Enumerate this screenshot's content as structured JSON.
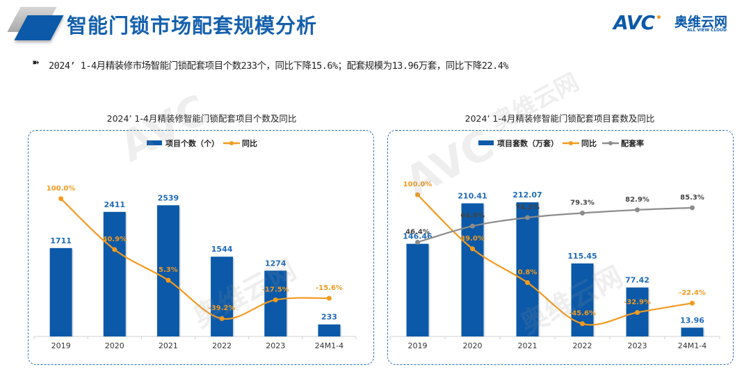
{
  "header": {
    "title": "智能门锁市场配套规模分析",
    "logo_text": "AVC",
    "logo_cn": "奥维云网",
    "logo_en": "ALL VIEW CLOUD"
  },
  "summary": {
    "bullet_icon": "arrow-bullet-icon",
    "text": "2024’ 1-4月精装修市场智能门锁配套项目个数233个，同比下降15.6%；配套规模为13.96万套，同比下降22.4%"
  },
  "colors": {
    "bar": "#0b59a8",
    "yoy": "#f29a1f",
    "rate": "#8c8c8c",
    "bar_label": "#1f6bb8",
    "title": "#1560ad"
  },
  "chart_data": [
    {
      "type": "bar",
      "title": "2024’ 1-4月精装修智能门锁配套项目个数及同比",
      "categories": [
        "2019",
        "2020",
        "2021",
        "2022",
        "2023",
        "24M1-4"
      ],
      "bar_series": {
        "name": "项目个数（个）",
        "values": [
          1711,
          2411,
          2539,
          1544,
          1274,
          233
        ],
        "labels": [
          "1711",
          "2411",
          "2539",
          "1544",
          "1274",
          "233"
        ]
      },
      "line_series": [
        {
          "name": "同比",
          "values": [
            100.0,
            40.9,
            5.3,
            -39.2,
            -17.5,
            -15.6
          ],
          "labels": [
            "100.0%",
            "40.9%",
            "5.3%",
            "-39.2%",
            "-17.5%",
            "-15.6%"
          ],
          "color_key": "yoy"
        }
      ],
      "ylim": [
        0,
        3000
      ],
      "y2lim": [
        -60,
        120
      ],
      "legend": "top-center",
      "grid": false
    },
    {
      "type": "bar",
      "title": "2024’ 1-4月精装修智能门锁配套项目套数及同比",
      "categories": [
        "2019",
        "2020",
        "2021",
        "2022",
        "2023",
        "24M1-4"
      ],
      "bar_series": {
        "name": "项目套数（万套）",
        "values": [
          146.46,
          210.41,
          212.07,
          115.45,
          77.42,
          13.96
        ],
        "labels": [
          "146.46",
          "210.41",
          "212.07",
          "115.45",
          "77.42",
          "13.96"
        ]
      },
      "line_series": [
        {
          "name": "同比",
          "values": [
            100.0,
            39.0,
            0.8,
            -45.6,
            -32.9,
            -22.4
          ],
          "labels": [
            "100.0%",
            "39.0%",
            "0.8%",
            "-45.6%",
            "-32.9%",
            "-22.4%"
          ],
          "color_key": "yoy"
        },
        {
          "name": "配套率",
          "values": [
            46.4,
            64.6,
            74.2,
            79.3,
            82.9,
            85.3
          ],
          "labels": [
            "46.4%",
            "64.6%",
            "74.2%",
            "79.3%",
            "82.9%",
            "85.3%"
          ],
          "color_key": "rate"
        }
      ],
      "ylim": [
        0,
        245
      ],
      "y2lim": [
        -60,
        115
      ],
      "legend": "top-center",
      "grid": false
    }
  ]
}
